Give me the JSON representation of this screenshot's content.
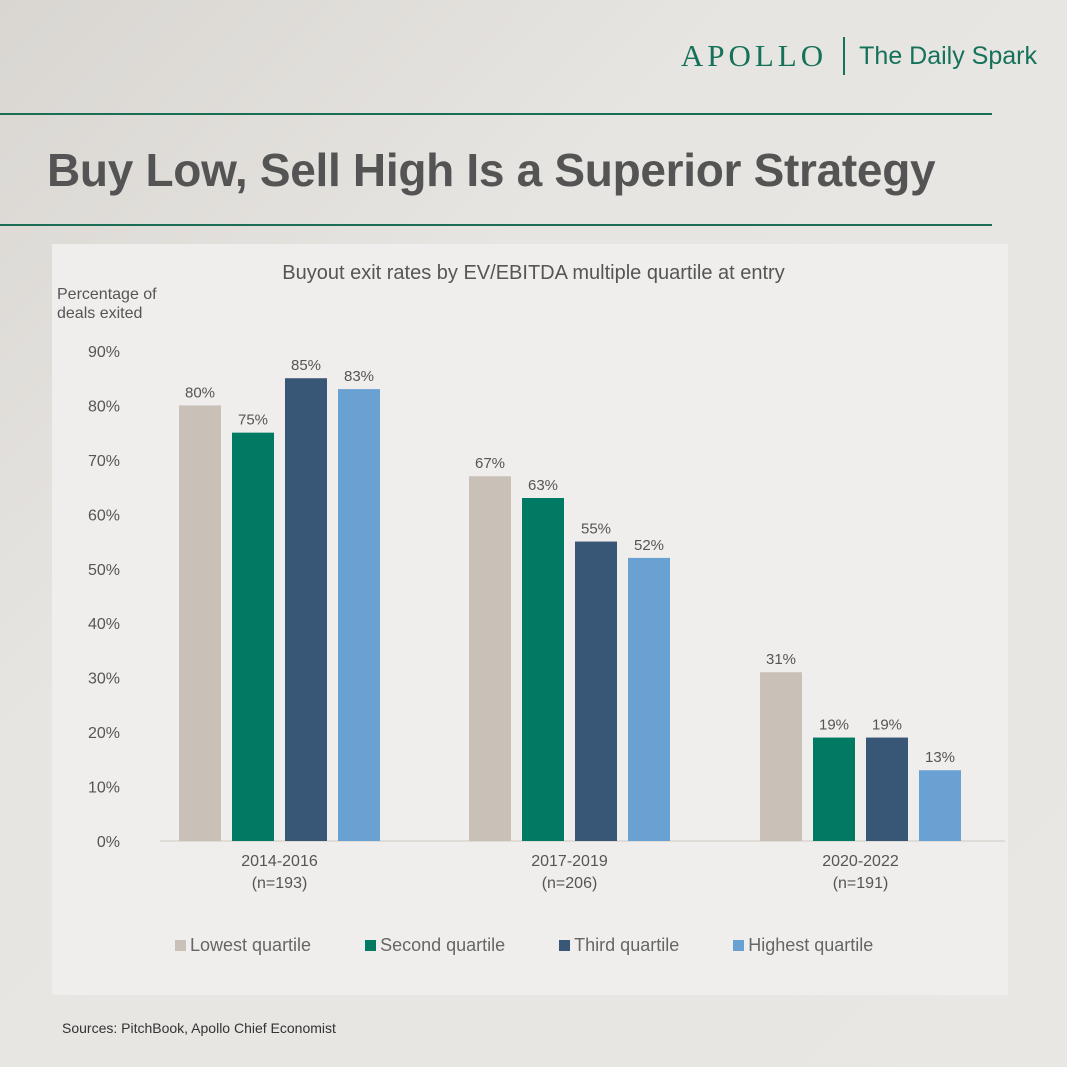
{
  "brand": {
    "name": "APOLLO",
    "product": "The Daily Spark"
  },
  "headline": "Buy Low, Sell High Is a Superior Strategy",
  "source": "Sources: PitchBook, Apollo Chief Economist",
  "colors": {
    "lowest": "#c9c0b8",
    "second": "#007a62",
    "third": "#385776",
    "highest": "#6aa1d3",
    "accent": "#15715a"
  },
  "chart_data": {
    "type": "bar",
    "title": "Buyout exit rates by EV/EBITDA multiple quartile at entry",
    "ylabel": "Percentage of deals exited",
    "xlabel": "",
    "ylim": [
      0,
      90
    ],
    "y_ticks": [
      "0%",
      "10%",
      "20%",
      "30%",
      "40%",
      "50%",
      "60%",
      "70%",
      "80%",
      "90%"
    ],
    "categories": [
      {
        "name": "2014-2016",
        "n": "(n=193)"
      },
      {
        "name": "2017-2019",
        "n": "(n=206)"
      },
      {
        "name": "2020-2022",
        "n": "(n=191)"
      }
    ],
    "series": [
      {
        "name": "Lowest quartile",
        "color": "#c9c0b8",
        "values": [
          80,
          67,
          31
        ],
        "labels": [
          "80%",
          "67%",
          "31%"
        ]
      },
      {
        "name": "Second quartile",
        "color": "#007a62",
        "values": [
          75,
          63,
          19
        ],
        "labels": [
          "75%",
          "63%",
          "19%"
        ]
      },
      {
        "name": "Third quartile",
        "color": "#385776",
        "values": [
          85,
          55,
          19
        ],
        "labels": [
          "85%",
          "55%",
          "19%"
        ]
      },
      {
        "name": "Highest quartile",
        "color": "#6aa1d3",
        "values": [
          83,
          52,
          13
        ],
        "labels": [
          "83%",
          "52%",
          "13%"
        ]
      }
    ],
    "grid": false,
    "legend": "bottom"
  }
}
